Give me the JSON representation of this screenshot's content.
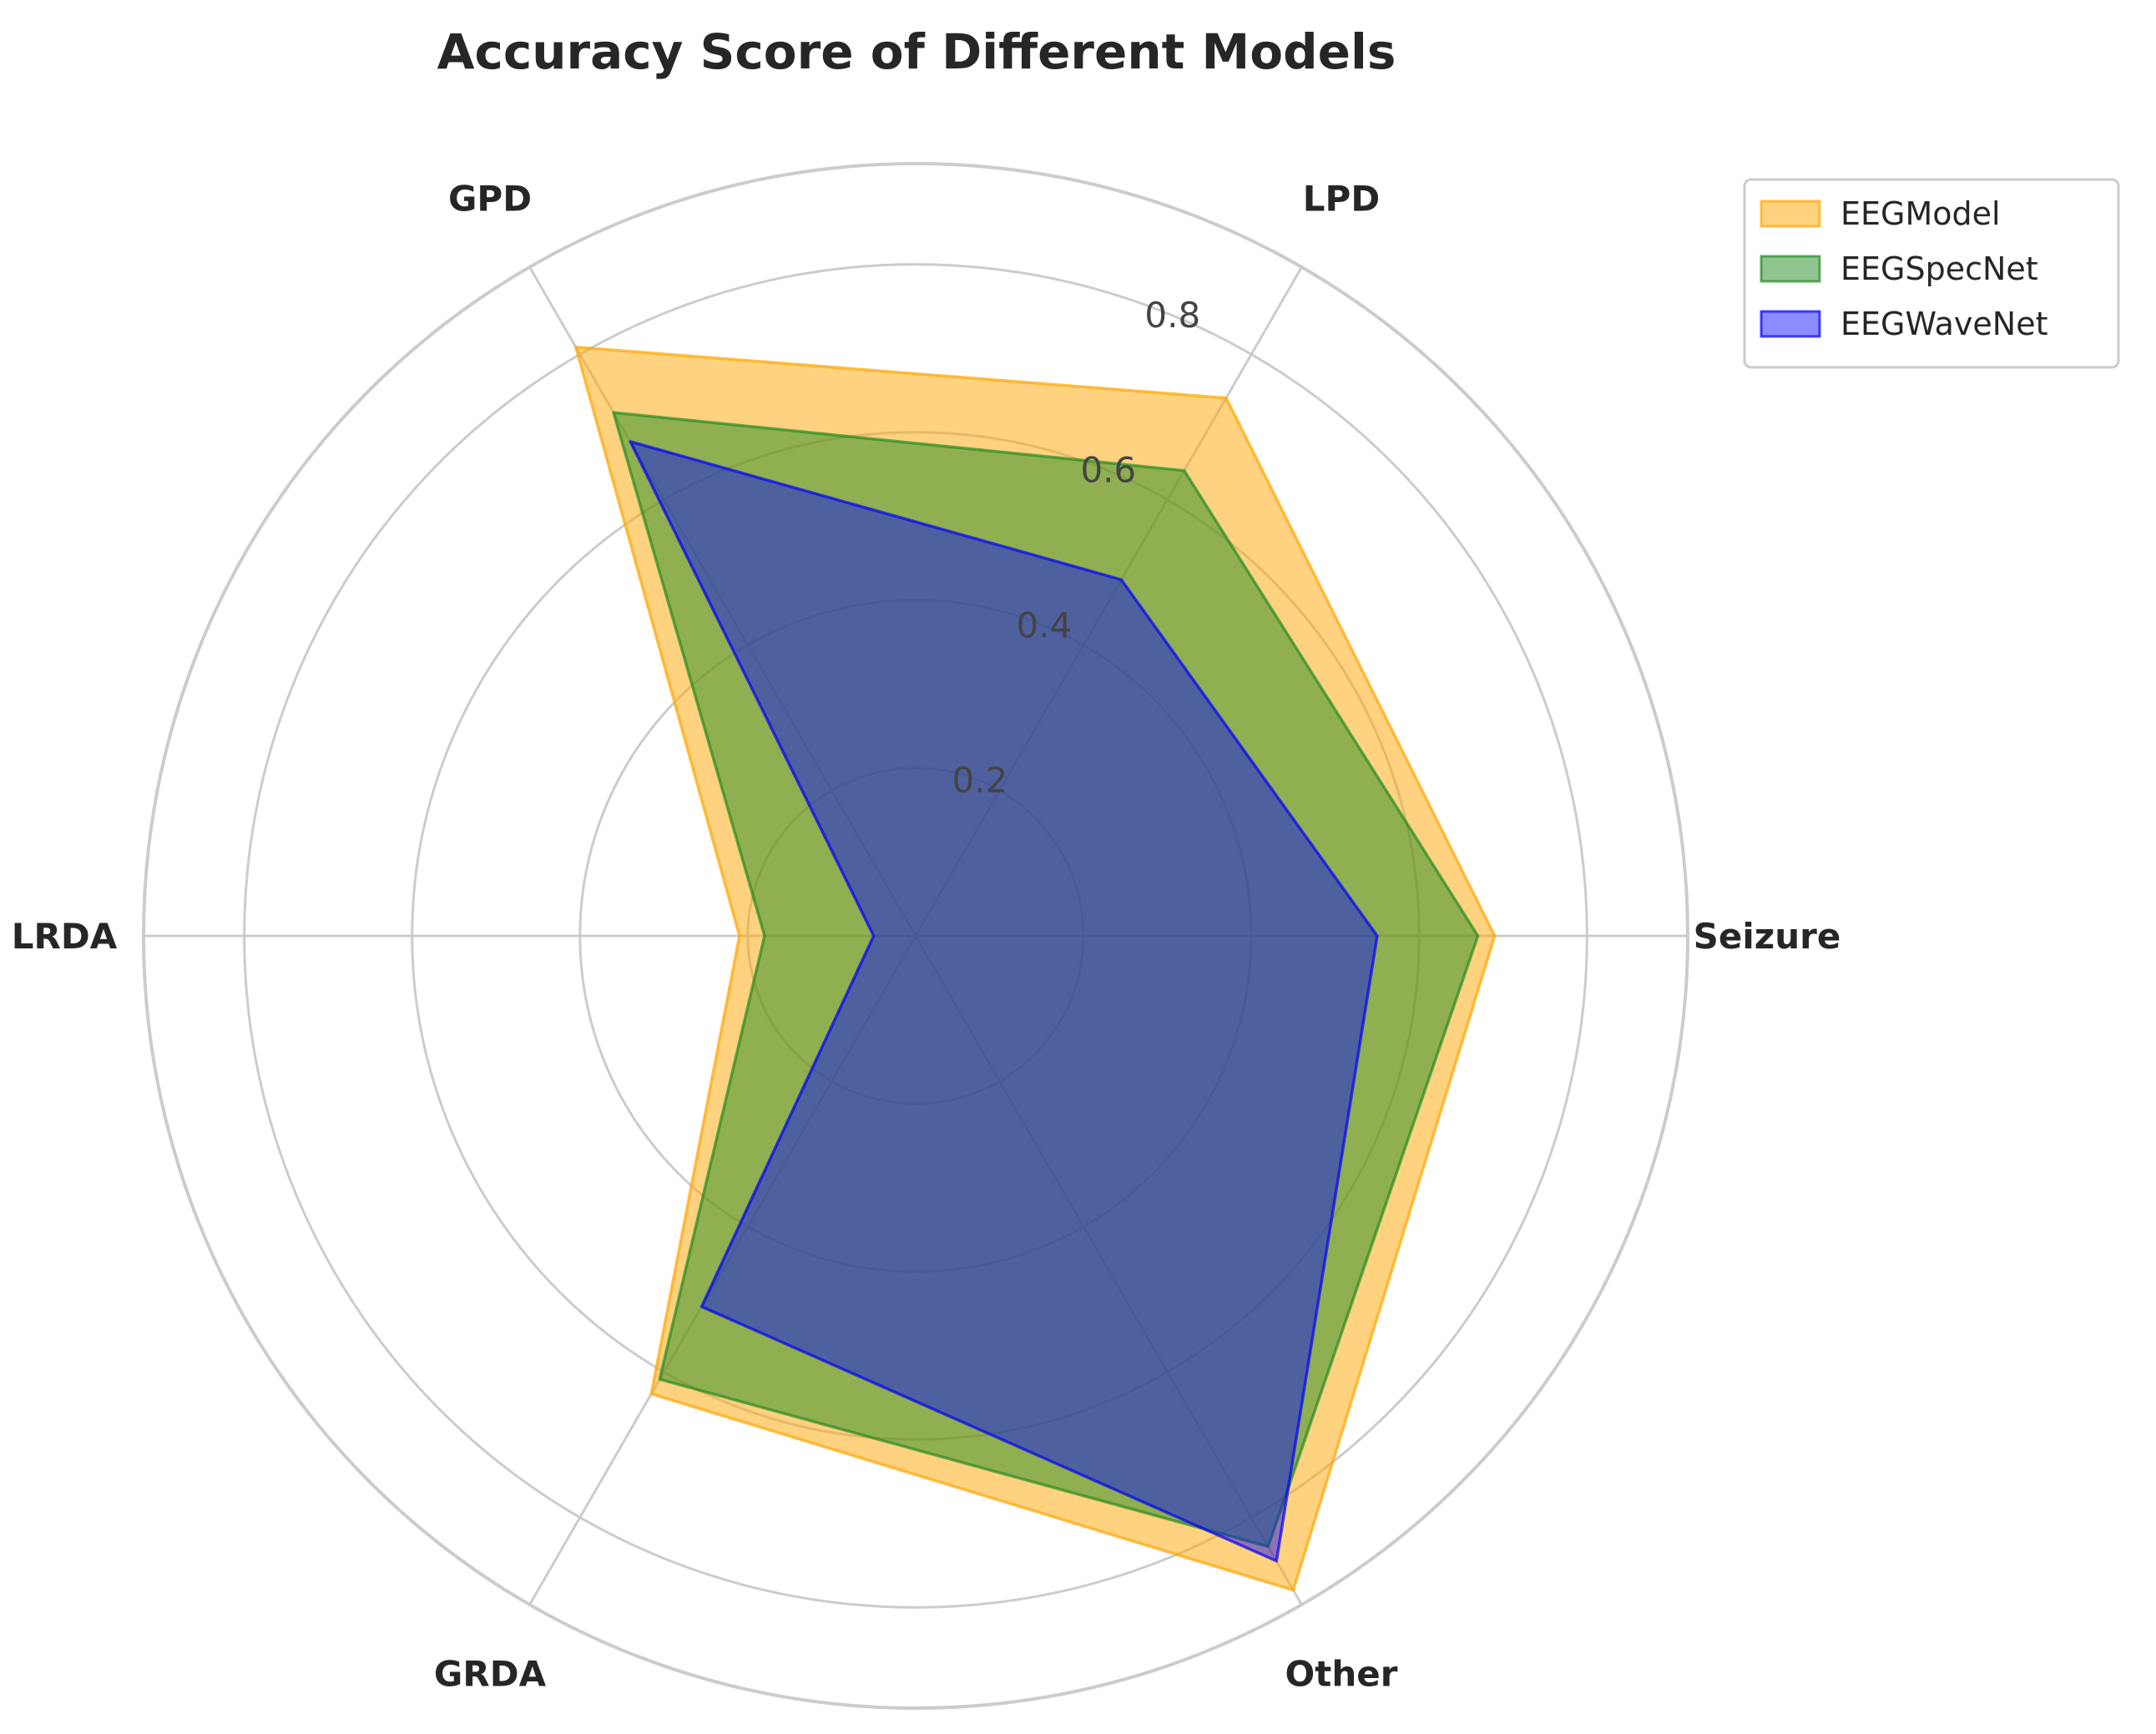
{
  "chart_data": {
    "type": "radar",
    "title": "Accuracy Score of Different Models",
    "categories": [
      "Seizure",
      "LPD",
      "GPD",
      "LRDA",
      "GRDA",
      "Other"
    ],
    "rlim": [
      0,
      0.92
    ],
    "rticks": [
      0.2,
      0.4,
      0.6,
      0.8
    ],
    "rtick_labels": [
      "0.2",
      "0.4",
      "0.6",
      "0.8"
    ],
    "grid": true,
    "legend_position": "top-right",
    "series": [
      {
        "name": "EEGModel",
        "color": "#FFA500",
        "fill_opacity": 0.5,
        "values": [
          0.69,
          0.74,
          0.81,
          0.21,
          0.63,
          0.9
        ]
      },
      {
        "name": "EEGSpecNet",
        "color": "#228B22",
        "fill_opacity": 0.5,
        "values": [
          0.67,
          0.64,
          0.72,
          0.18,
          0.61,
          0.84
        ]
      },
      {
        "name": "EEGWaveNet",
        "color": "#0000FF",
        "fill_opacity": 0.45,
        "values": [
          0.55,
          0.49,
          0.68,
          0.05,
          0.51,
          0.86
        ]
      }
    ]
  }
}
